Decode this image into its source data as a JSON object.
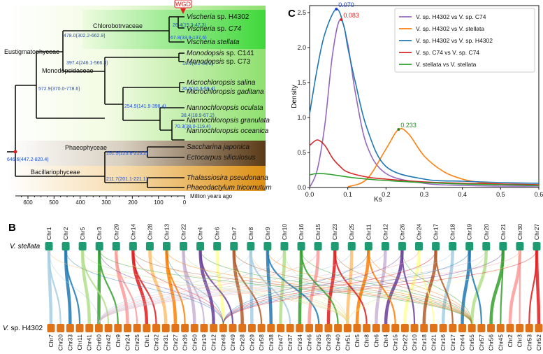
{
  "panels": {
    "a": "A",
    "b": "B",
    "c": "C"
  },
  "tree": {
    "wgd": "WGD",
    "groups": {
      "chlorobotryaceae": "Chlorobotrvaceae",
      "eustigmatophyceae": "Eustigmatophyceae",
      "monodopsidaceae": "Monodopsidaceae",
      "phaeophyceae": "Phaeophyceae",
      "bacillariophyceae": "Bacillariophyceae"
    },
    "species": [
      {
        "genus": "Vischeria",
        "epithet": "sp. H4302"
      },
      {
        "genus": "Vischeria",
        "epithet": "sp. C74"
      },
      {
        "genus": "Vischeria",
        "epithet": "stellata"
      },
      {
        "genus": "Monodopsis",
        "epithet": "sp. C141"
      },
      {
        "genus": "Monodopsis",
        "epithet": "sp. C73"
      },
      {
        "genus": "Microchloropsis",
        "epithet": "salina"
      },
      {
        "genus": "Microchloropsis",
        "epithet": "gaditana"
      },
      {
        "genus": "Nannochloropsis",
        "epithet": "oculata"
      },
      {
        "genus": "Nannochloropsis",
        "epithet": "granulata"
      },
      {
        "genus": "Nannochloropsis",
        "epithet": "oceanica"
      },
      {
        "genus": "Saccharina",
        "epithet": "japonica"
      },
      {
        "genus": "Ectocarpus",
        "epithet": "siliculosus"
      },
      {
        "genus": "Thalassiosira",
        "epithet": "pseudonana"
      },
      {
        "genus": "Phaeodactylum",
        "epithet": "tricornutum"
      }
    ],
    "node_ages": {
      "n1": "26.4(15.3-47.3)",
      "n2": "67.8(33.9-137.6)",
      "n3": "478.0(302.2-662.9)",
      "n4": "19.1(5.1-53.2)",
      "n5": "397.4(246.1-566.8)",
      "n6": "26.6(10.3-59.4)",
      "n7": "572.9(370.0-778.6)",
      "n8": "254.9(141.9-398.4)",
      "n9": "38.4(18.9-67.2)",
      "n10": "70.3(38.0-119.4)",
      "n11": "151.5(123.8-210.2)",
      "n12": "646.6(447.2-820.4)",
      "n13": "211.7(201.1-221.1)"
    },
    "axis": {
      "ticks": [
        "600",
        "500",
        "400",
        "300",
        "200",
        "100",
        "0"
      ],
      "label": "Million years ago"
    }
  },
  "synteny": {
    "top_label_genus": "V.",
    "top_label_epithet": "stellata",
    "bottom_label_genus": "V.",
    "bottom_label_epithet": "sp. H4302",
    "top_chromosomes": [
      "Chr1",
      "Chr2",
      "Chr5",
      "Chr3",
      "Chr29",
      "Chr14",
      "Chr28",
      "Chr13",
      "Chr22",
      "Chr4",
      "Chr6",
      "Chr7",
      "Chr8",
      "Chr9",
      "Chr10",
      "Chr16",
      "Chr15",
      "Chr23",
      "Chr25",
      "Chr11",
      "Chr12",
      "Chr26",
      "Chr24",
      "Chr17",
      "Chr18",
      "Chr19",
      "Chr20",
      "Chr21",
      "Chr30",
      "Chr27"
    ],
    "bottom_chromosomes": [
      "Chr7",
      "Chr20",
      "Chr33",
      "Chr11",
      "Chr41",
      "Chr60",
      "Chr42",
      "Chr9",
      "Chr24",
      "Chr25",
      "Chr1",
      "Chr32",
      "Chr31",
      "Chr27",
      "Chr36",
      "Chr50",
      "Chr19",
      "Chr12",
      "Chr48",
      "Chr49",
      "Chr28",
      "Chr29",
      "Chr58",
      "Chr38",
      "Chr47",
      "Chr37",
      "Chr34",
      "Chr46",
      "Chr35",
      "Chr39",
      "Chr40",
      "Chr51",
      "Chr5",
      "Chr8",
      "Chr6",
      "Chr4",
      "Chr15",
      "Chr22",
      "Chr10",
      "Chr18",
      "Chr21",
      "Chr16",
      "Chr17",
      "Chr44",
      "Chr55",
      "Chr57",
      "Chr56",
      "Chr45",
      "Chr2",
      "Chr3",
      "Chr53",
      "Chr52"
    ]
  },
  "chart_data": {
    "type": "line",
    "xlabel": "Ks",
    "ylabel": "Density",
    "xlim": [
      0,
      0.6
    ],
    "ylim": [
      0,
      2.6
    ],
    "xticks": [
      "0.0",
      "0.1",
      "0.2",
      "0.3",
      "0.4",
      "0.5",
      "0.6"
    ],
    "yticks": [
      "0.0",
      "0.5",
      "1.0",
      "1.5",
      "2.0",
      "2.5"
    ],
    "legend_position": "top-right",
    "series": [
      {
        "name": "V. sp. H4302 vs V. sp. C74",
        "color": "#9467bd",
        "x": [
          0,
          0.02,
          0.04,
          0.06,
          0.08,
          0.1,
          0.12,
          0.15,
          0.2,
          0.3,
          0.4,
          0.5,
          0.6
        ],
        "y": [
          0,
          0.25,
          0.9,
          1.9,
          2.4,
          2.05,
          1.35,
          0.6,
          0.2,
          0.06,
          0.03,
          0.02,
          0.02
        ]
      },
      {
        "name": "V. sp. H4302 vs V. stellata",
        "color": "#ff7f0e",
        "x": [
          0.1,
          0.15,
          0.2,
          0.233,
          0.26,
          0.3,
          0.35,
          0.4,
          0.45,
          0.5,
          0.6
        ],
        "y": [
          0.01,
          0.12,
          0.55,
          0.83,
          0.76,
          0.45,
          0.23,
          0.12,
          0.07,
          0.05,
          0.03
        ]
      },
      {
        "name": "V. sp. H4302 vs V. sp. H4302",
        "color": "#1f77b4",
        "x": [
          0,
          0.02,
          0.04,
          0.07,
          0.09,
          0.1,
          0.12,
          0.15,
          0.2,
          0.3,
          0.4,
          0.5,
          0.6
        ],
        "y": [
          1.05,
          1.7,
          2.2,
          2.55,
          2.3,
          2.0,
          1.5,
          0.85,
          0.3,
          0.12,
          0.09,
          0.07,
          0.06
        ]
      },
      {
        "name": "V. sp. C74 vs V. sp. C74",
        "color": "#d62728",
        "x": [
          0,
          0.02,
          0.04,
          0.06,
          0.08,
          0.1,
          0.15,
          0.2,
          0.3,
          0.4,
          0.5,
          0.6
        ],
        "y": [
          0.6,
          0.68,
          0.6,
          0.42,
          0.3,
          0.22,
          0.15,
          0.12,
          0.08,
          0.06,
          0.05,
          0.04
        ]
      },
      {
        "name": "V. stellata vs V. stellata",
        "color": "#2ca02c",
        "x": [
          0,
          0.02,
          0.05,
          0.1,
          0.15,
          0.2,
          0.3,
          0.4,
          0.5,
          0.6
        ],
        "y": [
          0.18,
          0.2,
          0.19,
          0.15,
          0.12,
          0.1,
          0.07,
          0.05,
          0.04,
          0.03
        ]
      }
    ],
    "peak_labels": [
      {
        "text": "0.070",
        "x": 0.07,
        "y": 2.55,
        "color": "#1f3fd0"
      },
      {
        "text": "0.083",
        "x": 0.083,
        "y": 2.4,
        "color": "#e02020"
      },
      {
        "text": "0.233",
        "x": 0.233,
        "y": 0.83,
        "color": "#2a8a2a"
      }
    ]
  }
}
